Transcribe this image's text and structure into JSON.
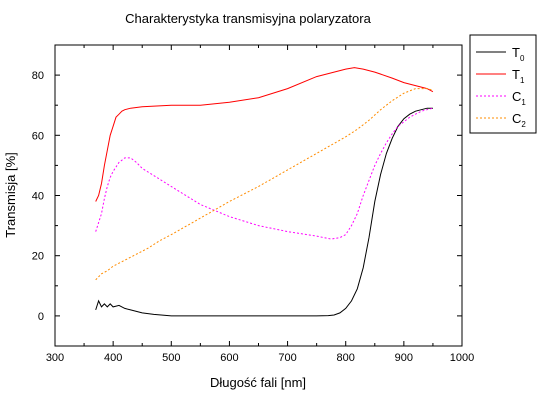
{
  "chart_data": {
    "type": "line",
    "title": "Charakterystyka transmisyjna polaryzatora",
    "xlabel": "Długość fali [nm]",
    "ylabel": "Transmisja [%]",
    "xlim": [
      300,
      1000
    ],
    "ylim": [
      -10,
      90
    ],
    "xticks": [
      300,
      400,
      500,
      600,
      700,
      800,
      900,
      1000
    ],
    "yticks": [
      0,
      20,
      40,
      60,
      80
    ],
    "grid": false,
    "legend_position": "right",
    "series": [
      {
        "name": "T0",
        "letter": "T",
        "sub": "0",
        "color": "#000000",
        "dash": "",
        "x": [
          370,
          375,
          380,
          385,
          390,
          395,
          400,
          410,
          420,
          430,
          440,
          450,
          470,
          500,
          550,
          600,
          650,
          700,
          750,
          770,
          780,
          790,
          800,
          810,
          820,
          830,
          840,
          850,
          860,
          870,
          880,
          890,
          900,
          910,
          920,
          930,
          940,
          950
        ],
        "y": [
          2,
          5,
          3,
          4,
          3,
          4,
          3,
          3.5,
          2.5,
          2,
          1.5,
          1,
          0.5,
          0,
          0,
          0,
          0,
          0,
          0,
          0.1,
          0.3,
          1,
          2.5,
          5,
          9,
          16,
          26,
          38,
          47,
          54,
          59,
          63,
          65.5,
          67,
          68,
          68.5,
          69,
          69
        ]
      },
      {
        "name": "T1",
        "letter": "T",
        "sub": "1",
        "color": "#ff0000",
        "dash": "",
        "x": [
          370,
          375,
          380,
          385,
          390,
          395,
          400,
          405,
          410,
          415,
          420,
          430,
          450,
          500,
          550,
          600,
          650,
          700,
          750,
          800,
          815,
          830,
          850,
          880,
          900,
          920,
          940,
          950
        ],
        "y": [
          38,
          40,
          44,
          50,
          55,
          60,
          63,
          66,
          67,
          68,
          68.5,
          69,
          69.5,
          70,
          70,
          71,
          72.5,
          75.5,
          79.5,
          82,
          82.5,
          82,
          81,
          79,
          77.5,
          76.5,
          75.5,
          74.5
        ]
      },
      {
        "name": "C1",
        "letter": "C",
        "sub": "1",
        "color": "#ff00ff",
        "dash": "2,2",
        "x": [
          370,
          375,
          380,
          385,
          390,
          395,
          400,
          410,
          420,
          430,
          440,
          450,
          475,
          500,
          550,
          600,
          650,
          700,
          750,
          775,
          790,
          800,
          810,
          820,
          830,
          840,
          850,
          860,
          870,
          880,
          890,
          900,
          910,
          920,
          930,
          940,
          950
        ],
        "y": [
          28,
          31,
          34,
          39,
          43,
          46,
          48,
          51,
          52.5,
          52.5,
          51,
          49,
          46,
          43,
          37,
          33,
          30,
          28,
          26.5,
          25.5,
          26,
          27,
          30,
          34,
          40,
          45,
          50,
          54,
          57.5,
          60.5,
          63,
          64.5,
          66,
          67,
          68,
          68.5,
          69
        ]
      },
      {
        "name": "C2",
        "letter": "C",
        "sub": "2",
        "color": "#ff8c00",
        "dash": "2,2",
        "x": [
          370,
          380,
          390,
          400,
          410,
          420,
          440,
          460,
          480,
          500,
          550,
          600,
          650,
          700,
          750,
          800,
          820,
          840,
          860,
          880,
          900,
          920,
          940,
          950
        ],
        "y": [
          12,
          14,
          15,
          16.5,
          17.5,
          18.5,
          20.5,
          22.5,
          25,
          27,
          32.5,
          38,
          43,
          48.5,
          54,
          59.5,
          62,
          65,
          68.5,
          71.5,
          74,
          75.5,
          75.5,
          75
        ]
      }
    ]
  }
}
